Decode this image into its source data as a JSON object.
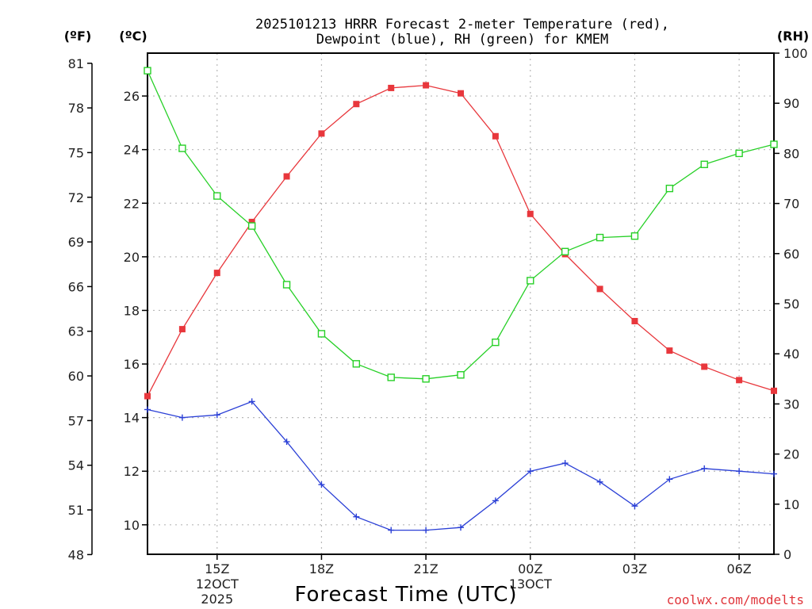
{
  "chart_data": {
    "type": "line",
    "title_line1": "2025101213 HRRR Forecast 2-meter Temperature (red),",
    "title_line2": "Dewpoint (blue), RH (green) for KMEM",
    "xlabel": "Forecast Time (UTC)",
    "credit": "coolwx.com/modelts",
    "units": {
      "fahrenheit": "(ºF)",
      "celsius": "(ºC)",
      "rh": "(RH)"
    },
    "x_hours": [
      13,
      14,
      15,
      16,
      17,
      18,
      19,
      20,
      21,
      22,
      23,
      24,
      25,
      26,
      27,
      28,
      29,
      30,
      31
    ],
    "xlim": [
      13,
      31
    ],
    "x_ticks": [
      {
        "hour": 15,
        "label": "15Z",
        "sub": [
          "12OCT",
          "2025"
        ]
      },
      {
        "hour": 18,
        "label": "18Z",
        "sub": []
      },
      {
        "hour": 21,
        "label": "21Z",
        "sub": []
      },
      {
        "hour": 24,
        "label": "00Z",
        "sub": [
          "13OCT"
        ]
      },
      {
        "hour": 27,
        "label": "03Z",
        "sub": []
      },
      {
        "hour": 30,
        "label": "06Z",
        "sub": []
      }
    ],
    "y_celsius": {
      "min": 8.9,
      "max": 27.6,
      "ticks": [
        10,
        12,
        14,
        16,
        18,
        20,
        22,
        24,
        26
      ]
    },
    "y_fahrenheit": {
      "ticks": [
        48,
        51,
        54,
        57,
        60,
        63,
        66,
        69,
        72,
        75,
        78,
        81
      ]
    },
    "y_rh": {
      "min": 0,
      "max": 100,
      "ticks": [
        0,
        10,
        20,
        30,
        40,
        50,
        60,
        70,
        80,
        90,
        100
      ]
    },
    "series": [
      {
        "name": "2-meter Temperature",
        "axis": "celsius",
        "color": "#e8373c",
        "marker": "filled-square",
        "values": [
          14.8,
          17.3,
          19.4,
          21.3,
          23.0,
          24.6,
          25.7,
          26.3,
          26.4,
          26.1,
          24.5,
          21.6,
          20.1,
          18.8,
          17.6,
          16.5,
          15.9,
          15.4,
          15.0
        ]
      },
      {
        "name": "Dewpoint",
        "axis": "celsius",
        "color": "#2a3fd6",
        "marker": "plus",
        "values": [
          14.3,
          14.0,
          14.1,
          14.6,
          13.1,
          11.5,
          10.3,
          9.8,
          9.8,
          9.9,
          10.9,
          12.0,
          12.3,
          11.6,
          10.7,
          11.7,
          12.1,
          12.0,
          11.9
        ]
      },
      {
        "name": "RH",
        "axis": "rh",
        "color": "#27d027",
        "marker": "open-square",
        "values": [
          96.5,
          81.0,
          71.5,
          65.5,
          53.8,
          44.0,
          38.0,
          35.3,
          35.0,
          35.8,
          42.3,
          54.6,
          60.4,
          63.2,
          63.5,
          73.0,
          77.8,
          80.0,
          81.8
        ]
      }
    ]
  }
}
